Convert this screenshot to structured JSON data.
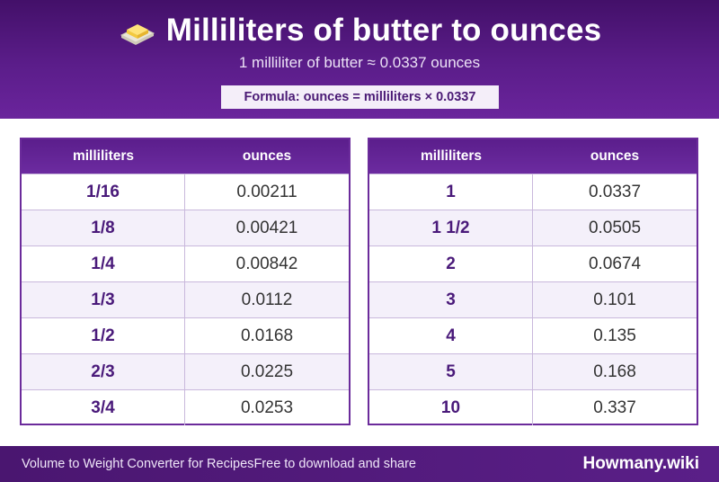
{
  "header": {
    "icon": "butter-icon",
    "title": "Milliliters of butter to ounces",
    "subtitle": "1 milliliter of butter ≈ 0.0337 ounces",
    "formula": "Formula: ounces = milliliters × 0.0337"
  },
  "tables": [
    {
      "col1": "milliliters",
      "col2": "ounces",
      "rows": [
        {
          "ml": "1/16",
          "oz": "0.00211"
        },
        {
          "ml": "1/8",
          "oz": "0.00421"
        },
        {
          "ml": "1/4",
          "oz": "0.00842"
        },
        {
          "ml": "1/3",
          "oz": "0.0112"
        },
        {
          "ml": "1/2",
          "oz": "0.0168"
        },
        {
          "ml": "2/3",
          "oz": "0.0225"
        },
        {
          "ml": "3/4",
          "oz": "0.0253"
        }
      ]
    },
    {
      "col1": "milliliters",
      "col2": "ounces",
      "rows": [
        {
          "ml": "1",
          "oz": "0.0337"
        },
        {
          "ml": "1 1/2",
          "oz": "0.0505"
        },
        {
          "ml": "2",
          "oz": "0.0674"
        },
        {
          "ml": "3",
          "oz": "0.101"
        },
        {
          "ml": "4",
          "oz": "0.135"
        },
        {
          "ml": "5",
          "oz": "0.168"
        },
        {
          "ml": "10",
          "oz": "0.337"
        }
      ]
    }
  ],
  "footer": {
    "left": "Volume to Weight Converter for Recipes",
    "middle": "Free to download and share",
    "brand": "Howmany.wiki"
  },
  "colors": {
    "header": "#5b1d8a",
    "accent_text": "#4a1a7a",
    "row_alt": "#f4f0fa"
  }
}
